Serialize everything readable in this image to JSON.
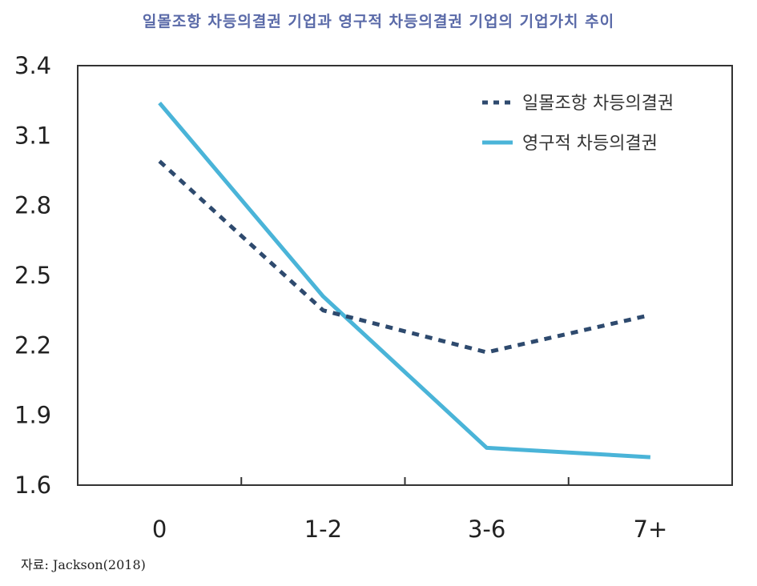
{
  "chart_data": {
    "type": "line",
    "title": "일몰조항 차등의결권 기업과 영구적 차등의결권 기업의 기업가치 추이",
    "categories": [
      "0",
      "1-2",
      "3-6",
      "7+"
    ],
    "series": [
      {
        "name": "일몰조항 차등의결권",
        "values": [
          2.99,
          2.35,
          2.17,
          2.33
        ],
        "color": "#2e4a6e",
        "style": "dotted"
      },
      {
        "name": "영구적 차등의결권",
        "values": [
          3.24,
          2.41,
          1.76,
          1.72
        ],
        "color": "#4ab4d8",
        "style": "solid"
      }
    ],
    "yticks": [
      "3.4",
      "3.1",
      "2.8",
      "2.5",
      "2.2",
      "1.9",
      "1.6"
    ],
    "ylim": [
      1.6,
      3.4
    ],
    "xlabel": "",
    "ylabel": "",
    "legend_position": "top-right",
    "source": "자료:  Jackson(2018)"
  }
}
